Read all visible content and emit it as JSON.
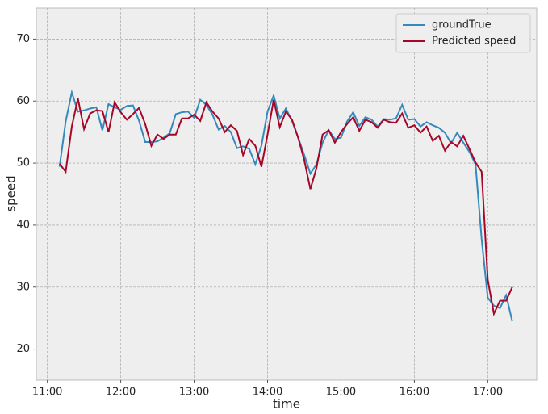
{
  "chart_data": {
    "type": "line",
    "xlabel": "time",
    "ylabel": "speed",
    "x": [
      "11:10",
      "11:15",
      "11:20",
      "11:25",
      "11:30",
      "11:35",
      "11:40",
      "11:45",
      "11:50",
      "11:55",
      "12:00",
      "12:05",
      "12:10",
      "12:15",
      "12:20",
      "12:25",
      "12:30",
      "12:35",
      "12:40",
      "12:45",
      "12:50",
      "12:55",
      "13:00",
      "13:05",
      "13:10",
      "13:15",
      "13:20",
      "13:25",
      "13:30",
      "13:35",
      "13:40",
      "13:45",
      "13:50",
      "13:55",
      "14:00",
      "14:05",
      "14:10",
      "14:15",
      "14:20",
      "14:25",
      "14:30",
      "14:35",
      "14:40",
      "14:45",
      "14:50",
      "14:55",
      "15:00",
      "15:05",
      "15:10",
      "15:15",
      "15:20",
      "15:25",
      "15:30",
      "15:35",
      "15:40",
      "15:45",
      "15:50",
      "15:55",
      "16:00",
      "16:05",
      "16:10",
      "16:15",
      "16:20",
      "16:25",
      "16:30",
      "16:35",
      "16:40",
      "16:45",
      "16:50",
      "16:55",
      "17:00",
      "17:05",
      "17:10",
      "17:15",
      "17:20"
    ],
    "series": [
      {
        "name": "groundTrue",
        "color": "#348abd",
        "values": [
          49.4,
          56.7,
          61.4,
          58.3,
          58.5,
          58.8,
          59.0,
          55.3,
          59.5,
          59.0,
          58.6,
          59.2,
          59.3,
          56.8,
          53.4,
          53.4,
          53.5,
          54.1,
          54.8,
          57.9,
          58.2,
          58.3,
          57.3,
          60.2,
          59.4,
          57.8,
          55.4,
          56.0,
          55.0,
          52.4,
          52.7,
          52.3,
          49.8,
          52.8,
          58.3,
          60.9,
          57.2,
          58.8,
          56.8,
          54.1,
          51.3,
          48.3,
          49.8,
          53.3,
          55.3,
          53.9,
          54.1,
          56.7,
          58.2,
          56.0,
          57.4,
          57.0,
          55.9,
          57.1,
          57.0,
          57.2,
          59.4,
          57.0,
          57.1,
          55.9,
          56.6,
          56.1,
          55.7,
          54.9,
          53.2,
          54.9,
          53.3,
          51.8,
          49.8,
          37.7,
          28.3,
          27.0,
          26.6,
          28.7,
          24.5
        ]
      },
      {
        "name": "Predicted speed",
        "color": "#a60628",
        "values": [
          49.9,
          48.6,
          55.9,
          60.4,
          55.5,
          58.0,
          58.5,
          58.4,
          55.0,
          59.8,
          58.2,
          57.0,
          57.9,
          58.9,
          56.3,
          52.8,
          54.6,
          53.9,
          54.6,
          54.6,
          57.2,
          57.2,
          57.8,
          56.8,
          59.8,
          58.3,
          57.2,
          55.0,
          56.1,
          55.2,
          51.3,
          53.9,
          52.8,
          49.4,
          54.6,
          60.2,
          55.8,
          58.3,
          57.0,
          54.1,
          50.5,
          45.8,
          49.2,
          54.6,
          55.3,
          53.3,
          55.0,
          56.3,
          57.4,
          55.2,
          57.0,
          56.6,
          55.7,
          57.0,
          56.6,
          56.5,
          58.0,
          55.7,
          56.1,
          54.9,
          55.9,
          53.6,
          54.4,
          52.0,
          53.4,
          52.7,
          54.4,
          52.3,
          50.1,
          48.6,
          31.2,
          25.7,
          27.8,
          27.8,
          30.0
        ]
      }
    ],
    "xlim": [
      "10:51",
      "17:40"
    ],
    "xticks": [
      "11:00",
      "12:00",
      "13:00",
      "14:00",
      "15:00",
      "16:00",
      "17:00"
    ],
    "ylim": [
      15,
      75
    ],
    "yticks": [
      20,
      30,
      40,
      50,
      60,
      70
    ],
    "grid": true,
    "legend": "upper right"
  }
}
